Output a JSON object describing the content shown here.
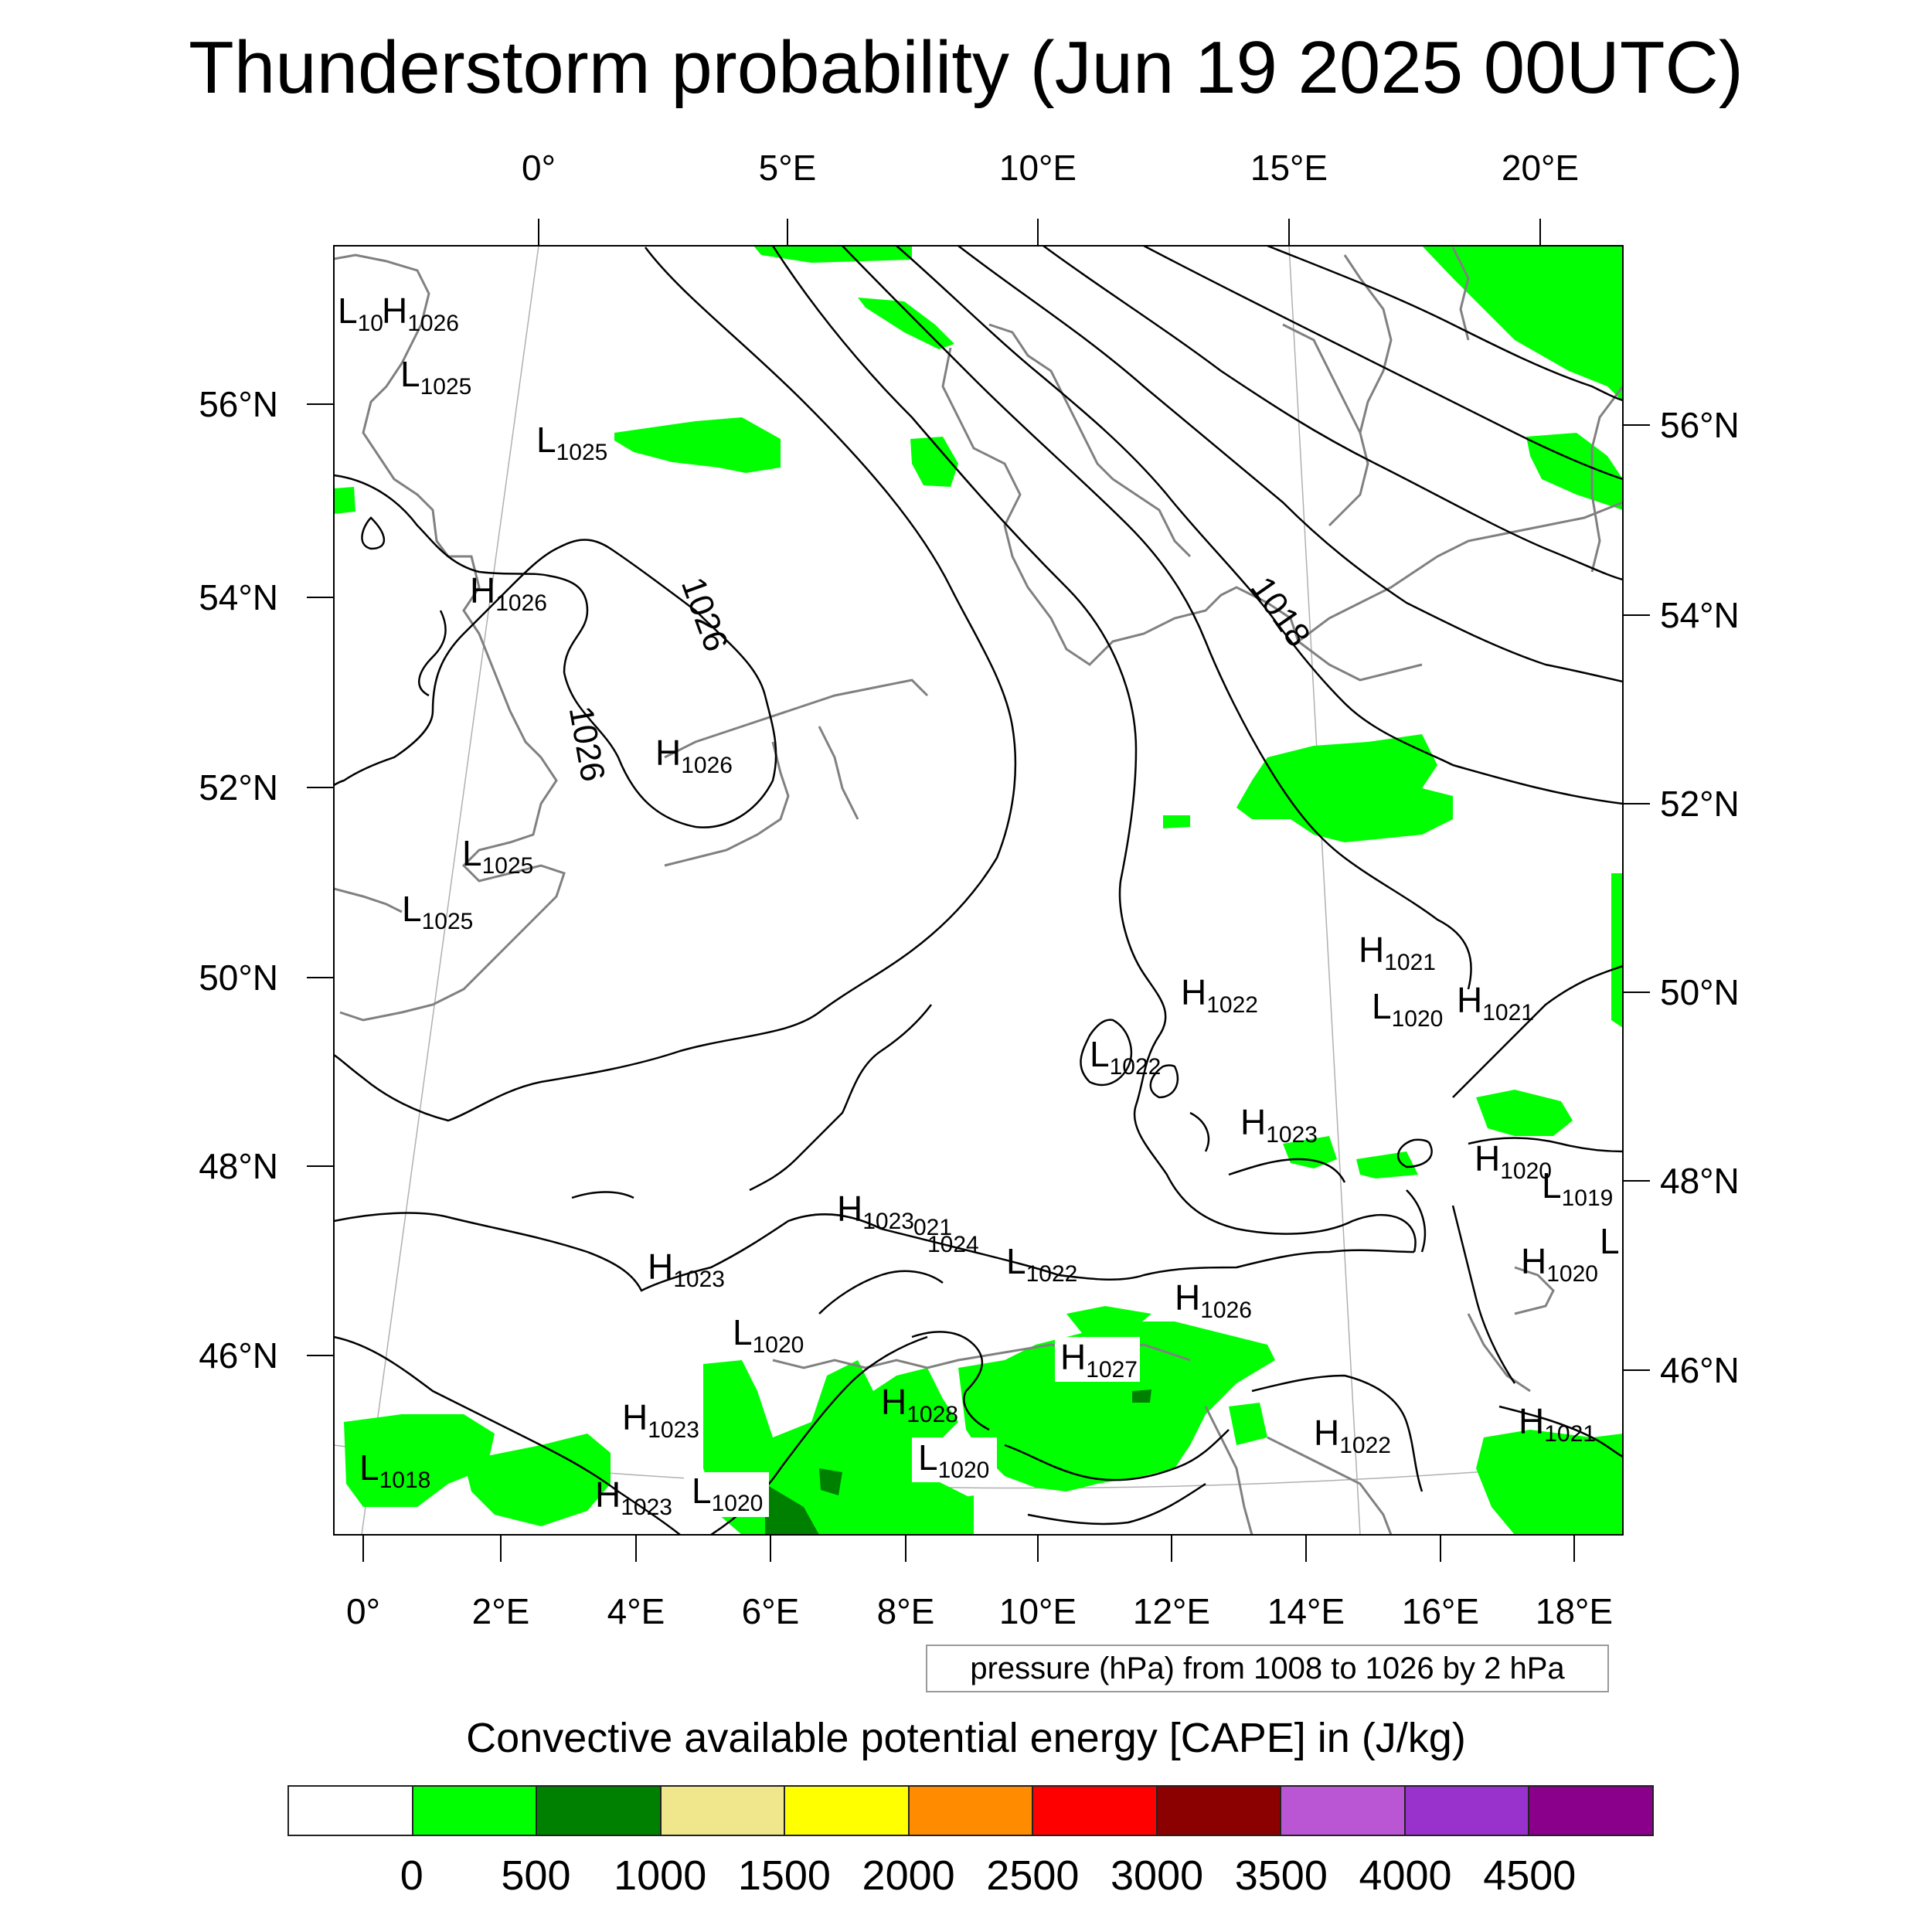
{
  "title": "Thunderstorm probability (Jun 19 2025 00UTC)",
  "top_lon_labels": [
    "0°",
    "5°E",
    "10°E",
    "15°E",
    "20°E"
  ],
  "bottom_lon_labels": [
    "0°",
    "2°E",
    "4°E",
    "6°E",
    "8°E",
    "10°E",
    "12°E",
    "14°E",
    "16°E",
    "18°E"
  ],
  "left_lat_labels": [
    "56°N",
    "54°N",
    "52°N",
    "50°N",
    "48°N",
    "46°N"
  ],
  "right_lat_labels": [
    "56°N",
    "54°N",
    "52°N",
    "50°N",
    "48°N",
    "46°N"
  ],
  "pressure_note": "pressure (hPa) from 1008 to 1026 by 2 hPa",
  "contour_labels": [
    "1026",
    "1026",
    "1018"
  ],
  "pressure_centers": [
    {
      "letter": "L",
      "value": "10"
    },
    {
      "letter": "H",
      "value": "1026"
    },
    {
      "letter": "L",
      "value": "1025"
    },
    {
      "letter": "L",
      "value": "1025"
    },
    {
      "letter": "H",
      "value": "1026"
    },
    {
      "letter": "H",
      "value": "1026"
    },
    {
      "letter": "L",
      "value": "1025"
    },
    {
      "letter": "L",
      "value": "1025"
    },
    {
      "letter": "H",
      "value": "1021"
    },
    {
      "letter": "H",
      "value": "1022"
    },
    {
      "letter": "L",
      "value": "1020"
    },
    {
      "letter": "H",
      "value": "1021"
    },
    {
      "letter": "L",
      "value": "1022"
    },
    {
      "letter": "H",
      "value": "1023"
    },
    {
      "letter": "H",
      "value": "1020"
    },
    {
      "letter": "L",
      "value": "1019"
    },
    {
      "letter": "H",
      "value": "1023"
    },
    {
      "letter": "L",
      "value": "1022"
    },
    {
      "letter": "H",
      "value": "1020"
    },
    {
      "letter": "L",
      "value": ""
    },
    {
      "letter": "H",
      "value": "1023"
    },
    {
      "letter": "H",
      "value": "1026"
    },
    {
      "letter": "L",
      "value": "1020"
    },
    {
      "letter": "H",
      "value": "1027"
    },
    {
      "letter": "H",
      "value": "1028"
    },
    {
      "letter": "H",
      "value": "1023"
    },
    {
      "letter": "H",
      "value": "1022"
    },
    {
      "letter": "H",
      "value": "1021"
    },
    {
      "letter": "L",
      "value": "1018"
    },
    {
      "letter": "H",
      "value": "1023"
    },
    {
      "letter": "L",
      "value": "1020"
    },
    {
      "letter": "L",
      "value": "1020"
    }
  ],
  "partial_labels": [
    "021",
    "1024"
  ],
  "colorbar": {
    "title": "Convective available potential energy [CAPE] in (J/kg)",
    "colors": [
      "#ffffff",
      "#00ff00",
      "#008000",
      "#f0e68c",
      "#ffff00",
      "#ff8c00",
      "#ff0000",
      "#8b0000",
      "#ba55d3",
      "#9932cc",
      "#8b008b"
    ],
    "labels": [
      "0",
      "500",
      "1000",
      "1500",
      "2000",
      "2500",
      "3000",
      "3500",
      "4000",
      "4500"
    ]
  },
  "colors": {
    "cape_light": "#00ff00",
    "cape_dark": "#008000",
    "coastline": "#808080",
    "isobar": "#000000",
    "graticule": "#b0b0b0"
  }
}
